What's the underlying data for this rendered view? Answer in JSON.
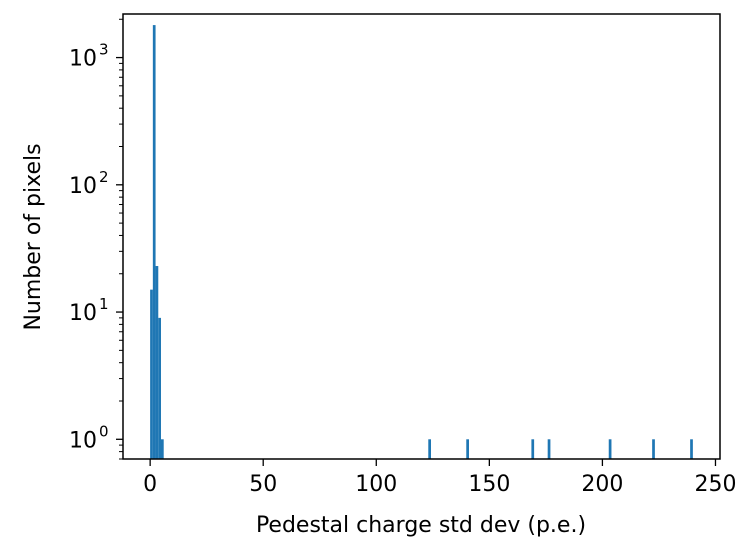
{
  "chart_data": {
    "type": "bar",
    "title": "",
    "xlabel": "Pedestal charge std dev (p.e.)",
    "ylabel": "Number of pixels",
    "x_scale": "linear",
    "y_scale": "log",
    "xlim": [
      -12,
      252
    ],
    "ylim": [
      0.7,
      2200
    ],
    "grid": false,
    "color": "#1f77b4",
    "bin_width": 1.2,
    "x_ticks": [
      0,
      50,
      100,
      150,
      200,
      250
    ],
    "x_tick_labels": [
      "0",
      "50",
      "100",
      "150",
      "200",
      "250"
    ],
    "y_ticks": [
      1,
      10,
      100,
      1000
    ],
    "y_tick_labels": [
      {
        "base": "10",
        "exp": "0"
      },
      {
        "base": "10",
        "exp": "1"
      },
      {
        "base": "10",
        "exp": "2"
      },
      {
        "base": "10",
        "exp": "3"
      }
    ],
    "bins": [
      {
        "x": 0.6,
        "count": 15
      },
      {
        "x": 1.8,
        "count": 1800
      },
      {
        "x": 3.0,
        "count": 23
      },
      {
        "x": 4.2,
        "count": 9
      },
      {
        "x": 5.4,
        "count": 1
      },
      {
        "x": 123.6,
        "count": 1
      },
      {
        "x": 140.4,
        "count": 1
      },
      {
        "x": 169.2,
        "count": 1
      },
      {
        "x": 176.4,
        "count": 1
      },
      {
        "x": 203.4,
        "count": 1
      },
      {
        "x": 222.6,
        "count": 1
      },
      {
        "x": 239.4,
        "count": 1
      }
    ]
  }
}
